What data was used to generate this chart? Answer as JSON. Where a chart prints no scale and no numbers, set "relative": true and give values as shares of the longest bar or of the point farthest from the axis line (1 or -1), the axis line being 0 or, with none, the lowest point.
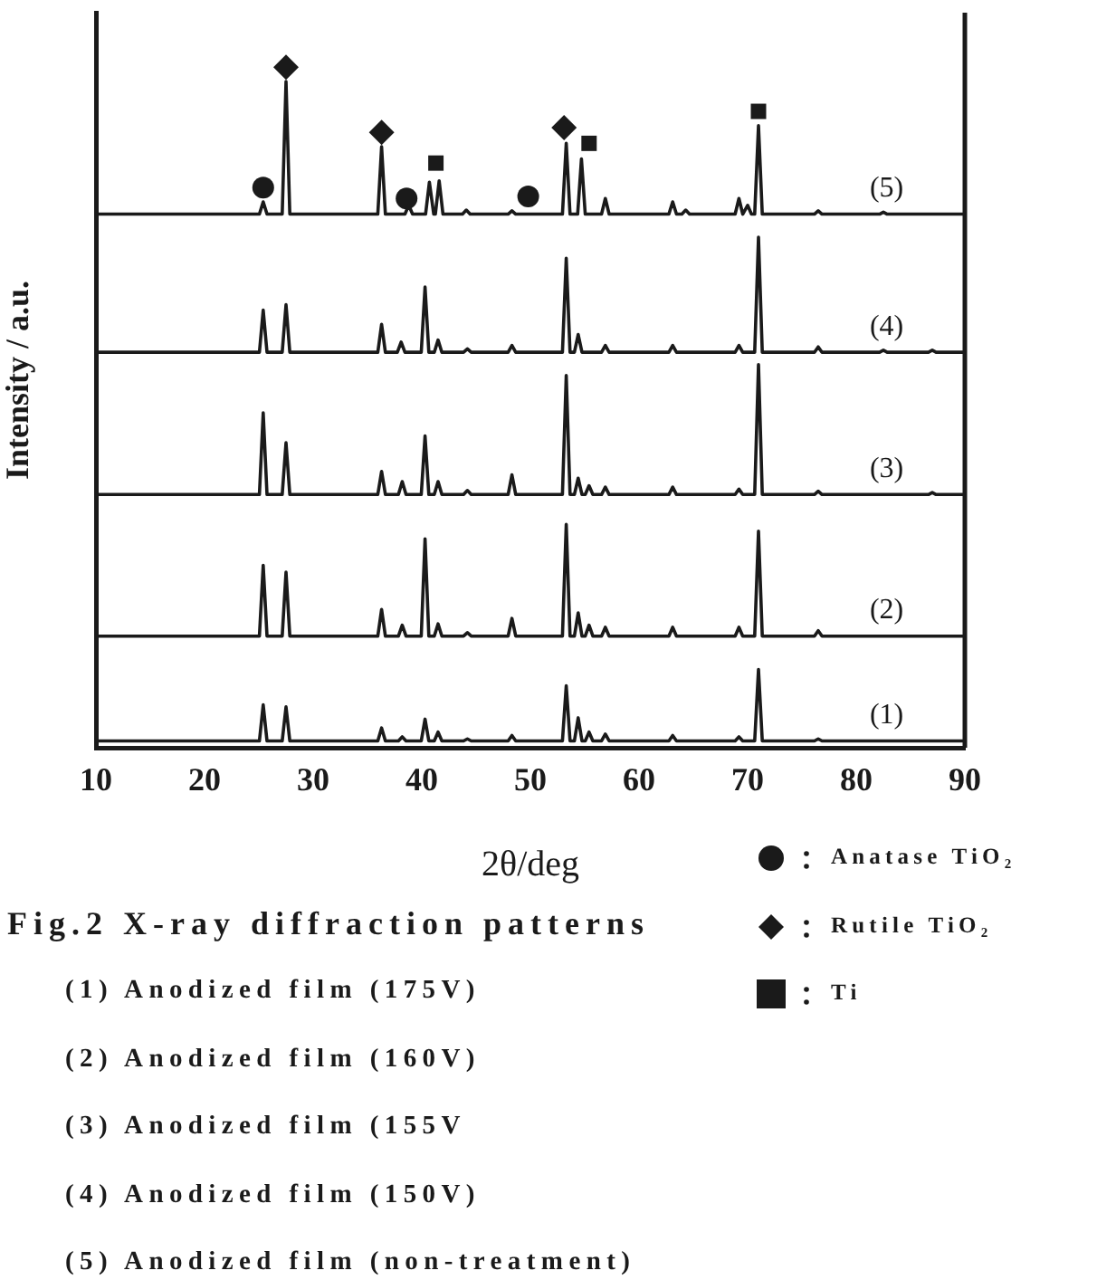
{
  "chart_data": {
    "type": "line",
    "relative": true,
    "title": "Fig.2 X-ray diffraction patterns",
    "xlabel": "2θ/deg",
    "ylabel": "Intensity / a.u.",
    "xlim": [
      10,
      90
    ],
    "xticks": [
      10,
      20,
      30,
      40,
      50,
      60,
      70,
      80,
      90
    ],
    "grid": false,
    "legend": "bottom right",
    "marker": "none",
    "line_style": "solid",
    "annotations": [
      "(1) Anodized film (175V)",
      "(2) Anodized film (160V)",
      "(3) Anodized film (155V",
      "(4) Anodized film (150V)",
      "(5) Anodized film (non-treatment)"
    ],
    "series": [
      {
        "name": "(1)",
        "color": "#1a1a1a",
        "x": [
          10,
          25.05,
          25.4,
          25.75,
          27.15,
          27.5,
          27.85,
          35.95,
          36.3,
          36.65,
          37.85,
          38.2,
          38.55,
          39.95,
          40.3,
          40.65,
          41.15,
          41.5,
          41.85,
          43.85,
          44.2,
          44.55,
          47.95,
          48.3,
          48.65,
          52.95,
          53.3,
          53.65,
          54.05,
          54.4,
          54.75,
          55.05,
          55.4,
          55.75,
          56.55,
          56.9,
          57.25,
          62.75,
          63.1,
          63.45,
          68.85,
          69.2,
          69.55,
          70.65,
          71.0,
          71.35,
          76.15,
          76.5,
          76.85,
          90
        ],
        "values": [
          0.01,
          0.01,
          0.063,
          0.01,
          0.01,
          0.06,
          0.01,
          0.01,
          0.029,
          0.01,
          0.01,
          0.016,
          0.01,
          0.01,
          0.042,
          0.01,
          0.01,
          0.023,
          0.01,
          0.01,
          0.013,
          0.01,
          0.01,
          0.018,
          0.01,
          0.01,
          0.091,
          0.01,
          0.01,
          0.044,
          0.01,
          0.01,
          0.023,
          0.01,
          0.01,
          0.02,
          0.01,
          0.01,
          0.018,
          0.01,
          0.01,
          0.016,
          0.01,
          0.01,
          0.115,
          0.01,
          0.01,
          0.013,
          0.01,
          0.01
        ]
      },
      {
        "name": "(2)",
        "color": "#1a1a1a",
        "x": [
          10,
          25.05,
          25.4,
          25.75,
          27.15,
          27.5,
          27.85,
          35.95,
          36.3,
          36.65,
          37.85,
          38.2,
          38.55,
          39.95,
          40.3,
          40.65,
          41.15,
          41.5,
          41.85,
          43.85,
          44.2,
          44.55,
          47.95,
          48.3,
          48.65,
          52.95,
          53.3,
          53.65,
          54.05,
          54.4,
          54.75,
          55.05,
          55.4,
          55.75,
          56.55,
          56.9,
          57.25,
          62.75,
          63.1,
          63.45,
          68.85,
          69.2,
          69.55,
          70.65,
          71.0,
          71.35,
          76.15,
          76.5,
          76.85,
          90
        ],
        "values": [
          0.164,
          0.164,
          0.268,
          0.164,
          0.164,
          0.258,
          0.164,
          0.164,
          0.203,
          0.164,
          0.164,
          0.18,
          0.164,
          0.164,
          0.307,
          0.164,
          0.164,
          0.182,
          0.164,
          0.164,
          0.169,
          0.164,
          0.164,
          0.19,
          0.164,
          0.164,
          0.328,
          0.164,
          0.164,
          0.198,
          0.164,
          0.164,
          0.18,
          0.164,
          0.164,
          0.177,
          0.164,
          0.164,
          0.177,
          0.164,
          0.164,
          0.177,
          0.164,
          0.164,
          0.318,
          0.164,
          0.164,
          0.172,
          0.164,
          0.164
        ]
      },
      {
        "name": "(3)",
        "color": "#1a1a1a",
        "x": [
          10,
          25.05,
          25.4,
          25.75,
          27.15,
          27.5,
          27.85,
          35.95,
          36.3,
          36.65,
          37.85,
          38.2,
          38.55,
          39.95,
          40.3,
          40.65,
          41.15,
          41.5,
          41.85,
          43.85,
          44.2,
          44.55,
          47.95,
          48.3,
          48.65,
          52.95,
          53.3,
          53.65,
          54.05,
          54.4,
          54.75,
          55.05,
          55.4,
          55.75,
          56.55,
          56.9,
          57.25,
          62.75,
          63.1,
          63.45,
          68.85,
          69.2,
          69.55,
          70.65,
          71.0,
          71.35,
          76.15,
          76.5,
          76.85,
          86.65,
          87,
          87.35,
          90
        ],
        "values": [
          0.372,
          0.372,
          0.492,
          0.372,
          0.372,
          0.448,
          0.372,
          0.372,
          0.406,
          0.372,
          0.372,
          0.391,
          0.372,
          0.372,
          0.458,
          0.372,
          0.372,
          0.391,
          0.372,
          0.372,
          0.378,
          0.372,
          0.372,
          0.401,
          0.372,
          0.372,
          0.547,
          0.372,
          0.372,
          0.396,
          0.372,
          0.372,
          0.385,
          0.372,
          0.372,
          0.383,
          0.372,
          0.372,
          0.383,
          0.372,
          0.372,
          0.38,
          0.372,
          0.372,
          0.563,
          0.372,
          0.372,
          0.377,
          0.372,
          0.372,
          0.375,
          0.372,
          0.372
        ]
      },
      {
        "name": "(4)",
        "color": "#1a1a1a",
        "x": [
          10,
          25.05,
          25.4,
          25.75,
          27.15,
          27.5,
          27.85,
          35.95,
          36.3,
          36.65,
          37.75,
          38.1,
          38.45,
          39.95,
          40.3,
          40.65,
          41.15,
          41.5,
          41.85,
          43.85,
          44.2,
          44.55,
          47.95,
          48.3,
          48.65,
          52.95,
          53.3,
          53.65,
          54.05,
          54.4,
          54.75,
          56.55,
          56.9,
          57.25,
          62.75,
          63.1,
          63.45,
          68.85,
          69.2,
          69.55,
          70.65,
          71.0,
          71.35,
          76.15,
          76.5,
          76.85,
          82.15,
          82.5,
          82.85,
          86.65,
          87,
          87.35,
          90
        ],
        "values": [
          0.581,
          0.581,
          0.643,
          0.581,
          0.581,
          0.651,
          0.581,
          0.581,
          0.622,
          0.581,
          0.581,
          0.596,
          0.581,
          0.581,
          0.677,
          0.581,
          0.581,
          0.599,
          0.581,
          0.581,
          0.586,
          0.581,
          0.581,
          0.591,
          0.581,
          0.581,
          0.719,
          0.581,
          0.581,
          0.607,
          0.581,
          0.581,
          0.591,
          0.581,
          0.581,
          0.591,
          0.581,
          0.581,
          0.591,
          0.581,
          0.581,
          0.75,
          0.581,
          0.581,
          0.589,
          0.581,
          0.581,
          0.584,
          0.581,
          0.581,
          0.584,
          0.581,
          0.581
        ]
      },
      {
        "name": "(5)",
        "color": "#1a1a1a",
        "x": [
          10,
          25.05,
          25.4,
          25.75,
          27.15,
          27.5,
          27.85,
          35.95,
          36.3,
          36.65,
          38.45,
          38.8,
          39.15,
          40.35,
          40.7,
          41.1,
          41.25,
          41.6,
          41.95,
          43.75,
          44.1,
          44.45,
          47.95,
          48.3,
          48.65,
          52.95,
          53.3,
          53.65,
          54.35,
          54.7,
          55.05,
          56.55,
          56.9,
          57.25,
          62.75,
          63.1,
          63.45,
          63.95,
          64.3,
          64.65,
          68.85,
          69.2,
          69.55,
          69.65,
          70.0,
          70.35,
          70.65,
          71.0,
          71.35,
          76.15,
          76.5,
          76.85,
          82.15,
          82.5,
          82.85,
          90
        ],
        "values": [
          0.784,
          0.784,
          0.802,
          0.784,
          0.784,
          0.979,
          0.784,
          0.784,
          0.883,
          0.784,
          0.784,
          0.797,
          0.784,
          0.784,
          0.831,
          0.784,
          0.784,
          0.833,
          0.784,
          0.784,
          0.79,
          0.784,
          0.784,
          0.789,
          0.784,
          0.784,
          0.888,
          0.784,
          0.784,
          0.865,
          0.784,
          0.784,
          0.807,
          0.784,
          0.784,
          0.802,
          0.784,
          0.784,
          0.79,
          0.784,
          0.784,
          0.807,
          0.784,
          0.784,
          0.797,
          0.784,
          0.784,
          0.914,
          0.784,
          0.784,
          0.789,
          0.784,
          0.784,
          0.787,
          0.784,
          0.784
        ]
      },
      {
        "name": "Anatase TiO₂",
        "type": "scatter",
        "marker": "circle",
        "color": "#1a1a1a",
        "x": [
          25.4,
          38.6,
          49.8
        ],
        "values": [
          0.823,
          0.807,
          0.81
        ]
      },
      {
        "name": "Rutile TiO₂",
        "type": "scatter",
        "marker": "diamond",
        "color": "#1a1a1a",
        "x": [
          27.5,
          36.3,
          53.1
        ],
        "values": [
          1.0,
          0.904,
          0.911
        ]
      },
      {
        "name": "Ti",
        "type": "scatter",
        "marker": "square",
        "color": "#1a1a1a",
        "x": [
          41.3,
          55.4,
          71.0
        ],
        "values": [
          0.859,
          0.888,
          0.935
        ]
      }
    ]
  }
}
